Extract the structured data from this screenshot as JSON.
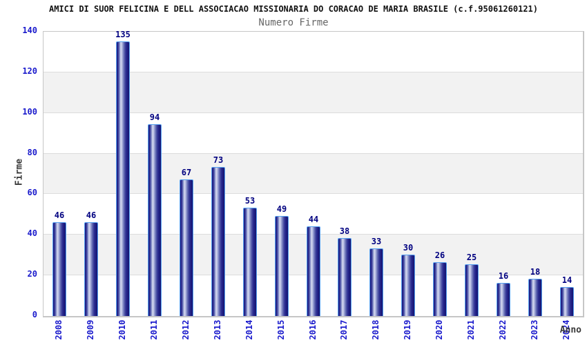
{
  "chart_data": {
    "type": "bar",
    "title": "AMICI DI SUOR FELICINA E DELL ASSOCIACAO MISSIONARIA DO CORACAO DE MARIA BRASILE (c.f.95061260121)",
    "subtitle": "Numero Firme",
    "xlabel": "Anno",
    "ylabel": "Firme",
    "categories": [
      "2008",
      "2009",
      "2010",
      "2011",
      "2012",
      "2013",
      "2014",
      "2015",
      "2016",
      "2017",
      "2018",
      "2019",
      "2020",
      "2021",
      "2022",
      "2023",
      "2024"
    ],
    "values": [
      46,
      46,
      135,
      94,
      67,
      73,
      53,
      49,
      44,
      38,
      33,
      30,
      26,
      25,
      16,
      18,
      14
    ],
    "ylim": [
      0,
      140
    ],
    "yticks": [
      0,
      20,
      40,
      60,
      80,
      100,
      120,
      140
    ],
    "grid": "horizontal-bands",
    "legend_position": "none",
    "value_labels": "above-bars",
    "colors": {
      "title": "#111111",
      "subtitle": "#666666",
      "tick_label_blue": "#1a1acc",
      "value_label_navy": "#000080",
      "axis_title_gray": "#3a3a3a",
      "bar_dark": "#1a1a7e",
      "bar_mid": "#8e96cc",
      "bar_light": "#d6daf0",
      "bar_border": "#55a0f0",
      "band_alt": "#f2f2f2",
      "grid_line": "#dcdcdc",
      "plot_border": "#c6c6c6"
    }
  }
}
